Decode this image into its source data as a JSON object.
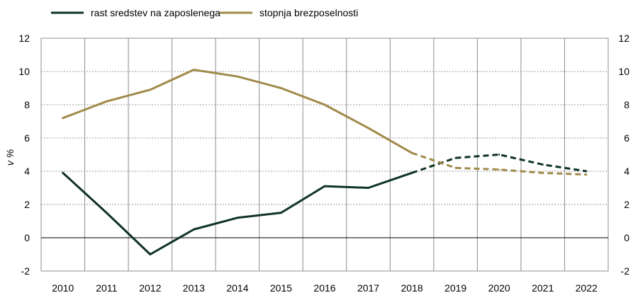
{
  "chart_data": {
    "type": "line",
    "x": [
      "2010",
      "2011",
      "2012",
      "2013",
      "2014",
      "2015",
      "2016",
      "2017",
      "2018",
      "2019",
      "2020",
      "2021",
      "2022"
    ],
    "ylabel": "v %",
    "ylim": [
      -2,
      12
    ],
    "yticks": [
      "-2",
      "0",
      "2",
      "4",
      "6",
      "8",
      "10",
      "12"
    ],
    "grid": "dashed horizontal and solid vertical",
    "legend": "top-left",
    "forecast_from": "2018",
    "series": [
      {
        "name": "rast sredstev na zaposlenega",
        "color": "#0f3324",
        "values": [
          3.9,
          1.5,
          -1.0,
          0.5,
          1.2,
          1.5,
          3.1,
          3.0,
          3.9,
          4.8,
          5.0,
          4.4,
          4.0
        ]
      },
      {
        "name": "stopnja brezposelnosti",
        "color": "#a08a4a",
        "values": [
          7.2,
          8.2,
          8.9,
          10.1,
          9.7,
          9.0,
          8.0,
          6.6,
          5.1,
          4.2,
          4.1,
          3.9,
          3.8
        ]
      }
    ]
  }
}
